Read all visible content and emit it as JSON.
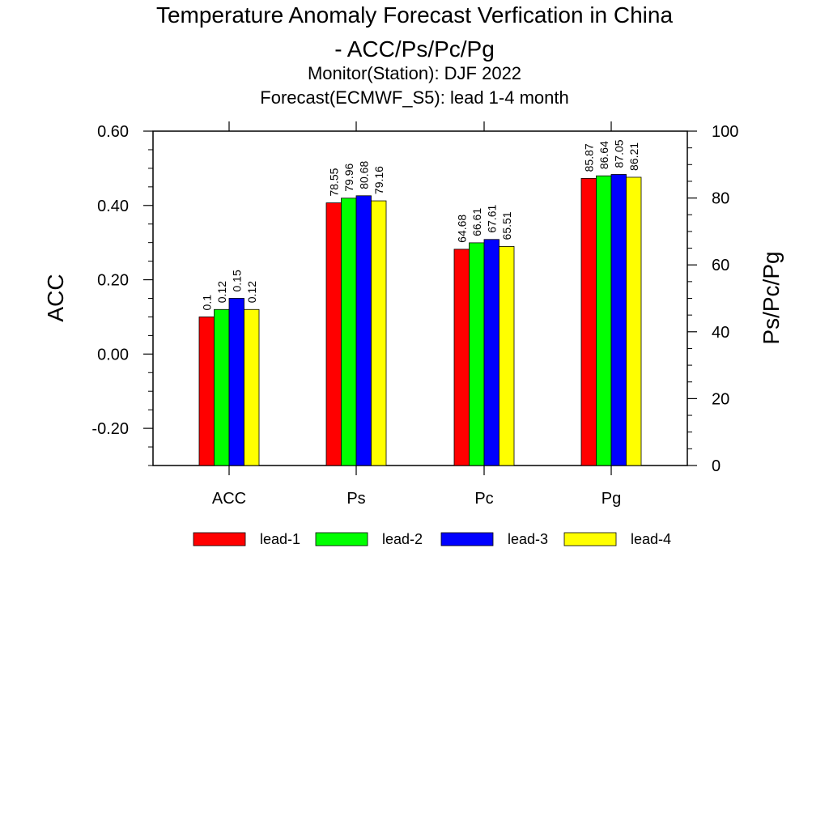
{
  "title_line1": "Temperature Anomaly Forecast Verfication in China",
  "title_line2": "- ACC/Ps/Pc/Pg",
  "subtitle_line1": "Monitor(Station): DJF 2022",
  "subtitle_line2": "Forecast(ECMWF_S5): lead 1-4 month",
  "chart_data": {
    "type": "bar",
    "categories": [
      "ACC",
      "Ps",
      "Pc",
      "Pg"
    ],
    "series": [
      {
        "name": "lead-1",
        "color": "#ff0000",
        "values": [
          0.1,
          78.55,
          64.68,
          85.87
        ],
        "labels": [
          "0.1",
          "78.55",
          "64.68",
          "85.87"
        ]
      },
      {
        "name": "lead-2",
        "color": "#00ff00",
        "values": [
          0.12,
          79.96,
          66.61,
          86.64
        ],
        "labels": [
          "0.12",
          "79.96",
          "66.61",
          "86.64"
        ]
      },
      {
        "name": "lead-3",
        "color": "#0000ff",
        "values": [
          0.15,
          80.68,
          67.61,
          87.05
        ],
        "labels": [
          "0.15",
          "80.68",
          "67.61",
          "87.05"
        ]
      },
      {
        "name": "lead-4",
        "color": "#ffff00",
        "values": [
          0.12,
          79.16,
          65.51,
          86.21
        ],
        "labels": [
          "0.12",
          "79.16",
          "65.51",
          "86.21"
        ]
      }
    ],
    "left_axis": {
      "label": "ACC",
      "ylim": [
        -0.3,
        0.6
      ],
      "ticks": [
        -0.2,
        0.0,
        0.2,
        0.4,
        0.6
      ],
      "tick_labels": [
        "-0.20",
        "0.00",
        "0.20",
        "0.40",
        "0.60"
      ],
      "applies_to": [
        "ACC"
      ]
    },
    "right_axis": {
      "label": "Ps/Pc/Pg",
      "ylim": [
        0,
        100
      ],
      "ticks": [
        0,
        20,
        40,
        60,
        80,
        100
      ],
      "tick_labels": [
        "0",
        "20",
        "40",
        "60",
        "80",
        "100"
      ],
      "applies_to": [
        "Ps",
        "Pc",
        "Pg"
      ]
    },
    "grid": false,
    "legend_position": "bottom"
  }
}
